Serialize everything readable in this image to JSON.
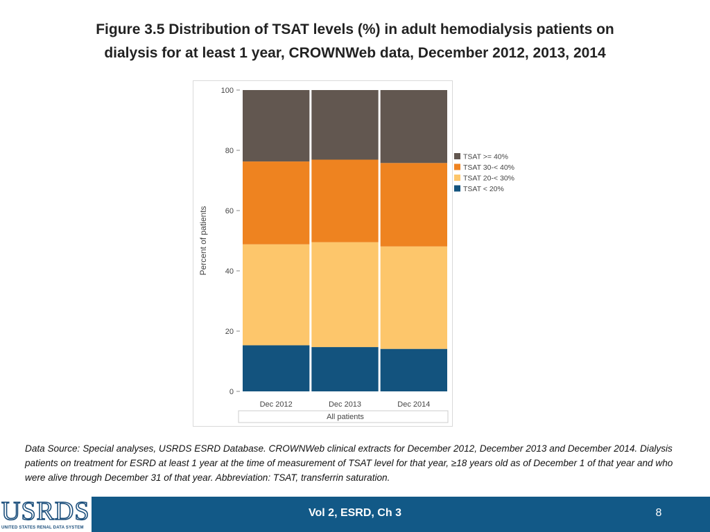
{
  "title": {
    "line1": "Figure 3.5 Distribution of TSAT levels (%) in adult hemodialysis patients on",
    "line2": "dialysis for at least 1 year, CROWNWeb data, December 2012, 2013, 2014"
  },
  "chart_data": {
    "type": "bar",
    "stacked": true,
    "ylabel": "Percent of patients",
    "xlabel": "All patients",
    "ylim": [
      0,
      100
    ],
    "yticks": [
      0,
      20,
      40,
      60,
      80,
      100
    ],
    "categories": [
      "Dec 2012",
      "Dec 2013",
      "Dec 2014"
    ],
    "legend_position": "right",
    "series": [
      {
        "name": "TSAT < 20%",
        "color": "#13537e",
        "values": [
          15.3,
          14.7,
          14.1
        ]
      },
      {
        "name": "TSAT 20-< 30%",
        "color": "#fdc66b",
        "values": [
          33.5,
          34.8,
          34.0
        ]
      },
      {
        "name": "TSAT 30-< 40%",
        "color": "#ee8320",
        "values": [
          27.5,
          27.4,
          27.7
        ]
      },
      {
        "name": "TSAT >= 40%",
        "color": "#625750",
        "values": [
          23.7,
          23.1,
          24.2
        ]
      }
    ],
    "legend_order": [
      "TSAT >= 40%",
      "TSAT 30-< 40%",
      "TSAT 20-< 30%",
      "TSAT < 20%"
    ]
  },
  "source": {
    "label": "Data Source:",
    "text": "Special analyses, USRDS ESRD Database. CROWNWeb clinical extracts for December 2012, December 2013 and December 2014. Dialysis patients on treatment for ESRD at least 1 year at the time of measurement of TSAT level for that year, ≥18 years old as of December 1 of that year and who were alive through December 31 of that year. Abbreviation: TSAT, transferrin saturation."
  },
  "footer": {
    "logo_text": "USRDS",
    "logo_subtitle": "UNITED STATES RENAL DATA SYSTEM",
    "label": "Vol 2, ESRD, Ch 3",
    "page_number": "8"
  }
}
